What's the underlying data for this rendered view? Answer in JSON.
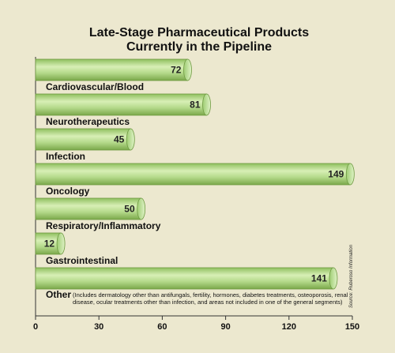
{
  "chart_data": {
    "type": "bar",
    "orientation": "horizontal",
    "title": [
      "Late-Stage Pharmaceutical Products",
      "Currently in the Pipeline"
    ],
    "categories": [
      "Cardiovascular/Blood",
      "Neurotherapeutics",
      "Infection",
      "Oncology",
      "Respiratory/Inflammatory",
      "Gastrointestinal",
      "Other"
    ],
    "values": [
      72,
      81,
      45,
      149,
      50,
      12,
      141
    ],
    "other_note": [
      "(Includes dermatology other than antifungals, fertility, hormones, diabetes treatments, osteoporosis, renal",
      "disease, ocular treatments other than infection, and areas not included in one of the general segments)"
    ],
    "xlim": [
      0,
      150
    ],
    "xticks": [
      0,
      30,
      60,
      90,
      120,
      150
    ],
    "source": "Source: Ruberoso Information",
    "grid": false,
    "legend": "none",
    "bar_color": "#a9d07a"
  }
}
